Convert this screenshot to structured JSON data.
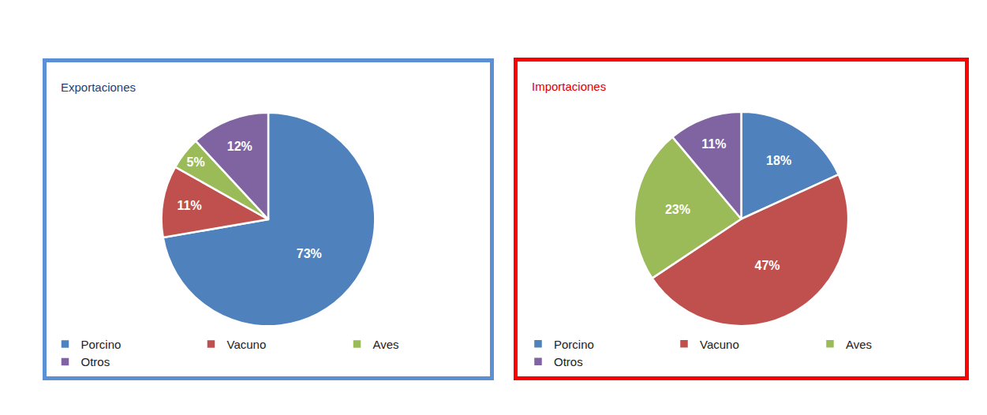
{
  "chart_data": [
    {
      "type": "pie",
      "title": "Exportaciones",
      "categories": [
        "Porcino",
        "Vacuno",
        "Aves",
        "Otros"
      ],
      "values": [
        73,
        11,
        5,
        12
      ],
      "value_labels": [
        "73%",
        "11%",
        "5%",
        "12%"
      ],
      "colors": [
        "#4f81bd",
        "#c0504d",
        "#9bbb59",
        "#8064a2"
      ],
      "data_labels": true,
      "legend": "bottom"
    },
    {
      "type": "pie",
      "title": "Importaciones",
      "categories": [
        "Porcino",
        "Vacuno",
        "Aves",
        "Otros"
      ],
      "values": [
        18,
        47,
        23,
        11
      ],
      "value_labels": [
        "18%",
        "47%",
        "23%",
        "11%"
      ],
      "colors": [
        "#4f81bd",
        "#c0504d",
        "#9bbb59",
        "#8064a2"
      ],
      "data_labels": true,
      "legend": "bottom"
    }
  ]
}
